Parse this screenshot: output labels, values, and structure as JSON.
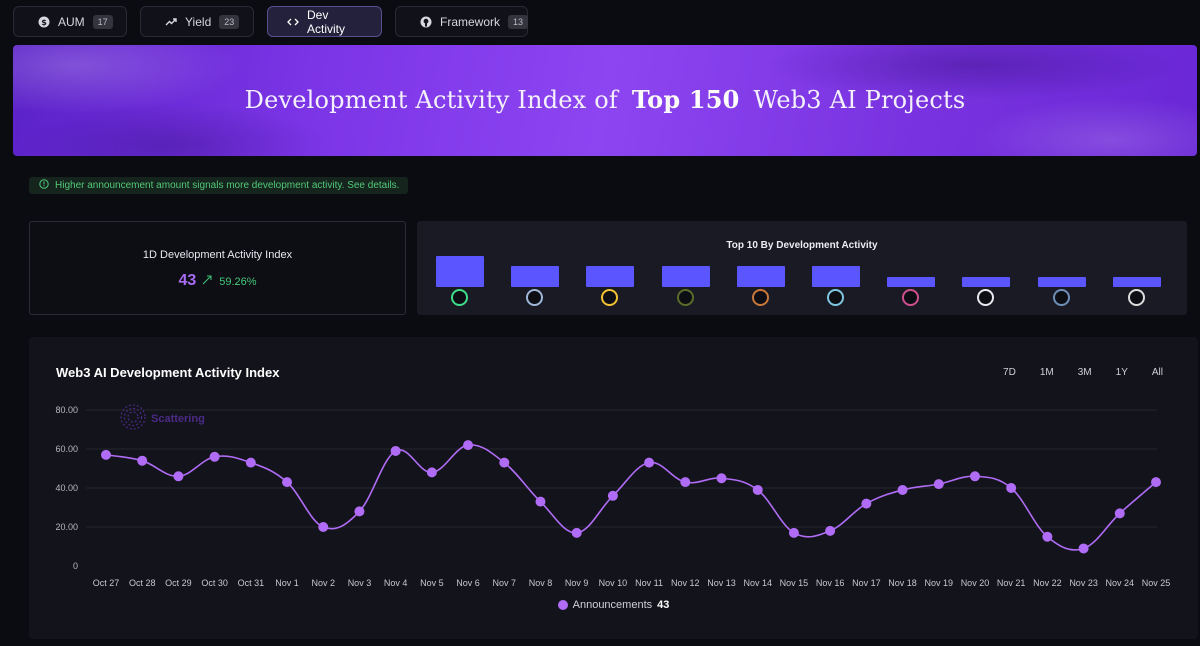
{
  "tabs": [
    {
      "label": "AUM",
      "count": "17",
      "icon": "dollar-icon"
    },
    {
      "label": "Yield",
      "count": "23",
      "icon": "trend-icon"
    },
    {
      "label": "Dev Activity",
      "icon": "code-icon"
    },
    {
      "label": "Framework",
      "count": "13",
      "icon": "github-icon"
    }
  ],
  "banner": {
    "title_pre": "Development Activity Index of",
    "title_strong": "Top 150",
    "title_post": "Web3 AI Projects"
  },
  "note": "Higher announcement amount signals more development activity. See details.",
  "index_card": {
    "title": "1D Development Activity Index",
    "value": "43",
    "change": "59.26%"
  },
  "top10": {
    "title": "Top 10 By Development Activity",
    "values": [
      3,
      2,
      2,
      2,
      2,
      2,
      1,
      1,
      1,
      1
    ],
    "icon_colors": [
      "#3fdc8a",
      "#9fb6d8",
      "#f2c230",
      "#5a6b2a",
      "#c9783a",
      "#7fc6e0",
      "#d04f8f",
      "#e8e8ee",
      "#6e8fb8",
      "#dcdcdc"
    ]
  },
  "chart": {
    "title": "Web3 AI Development Activity Index",
    "ranges": [
      "7D",
      "1M",
      "3M",
      "1Y",
      "All"
    ],
    "active_range": "1M",
    "watermark": "Scattering",
    "legend_label": "Announcements",
    "legend_value": "43"
  },
  "chart_data": {
    "type": "line",
    "x": [
      "Oct 27",
      "Oct 28",
      "Oct 29",
      "Oct 30",
      "Oct 31",
      "Nov 1",
      "Nov 2",
      "Nov 3",
      "Nov 4",
      "Nov 5",
      "Nov 6",
      "Nov 7",
      "Nov 8",
      "Nov 9",
      "Nov 10",
      "Nov 11",
      "Nov 12",
      "Nov 13",
      "Nov 14",
      "Nov 15",
      "Nov 16",
      "Nov 17",
      "Nov 18",
      "Nov 19",
      "Nov 20",
      "Nov 21",
      "Nov 22",
      "Nov 23",
      "Nov 24",
      "Nov 25"
    ],
    "series": [
      {
        "name": "Announcements",
        "values": [
          57,
          54,
          46,
          56,
          53,
          43,
          20,
          28,
          59,
          48,
          62,
          53,
          33,
          17,
          36,
          53,
          43,
          45,
          39,
          17,
          18,
          32,
          39,
          42,
          46,
          40,
          15,
          9,
          27,
          43
        ]
      }
    ],
    "yticks": [
      "0",
      "20.00",
      "40.00",
      "60.00",
      "80.00"
    ],
    "ylim": [
      0,
      80
    ],
    "grid": true,
    "color": "#b06cf6"
  }
}
